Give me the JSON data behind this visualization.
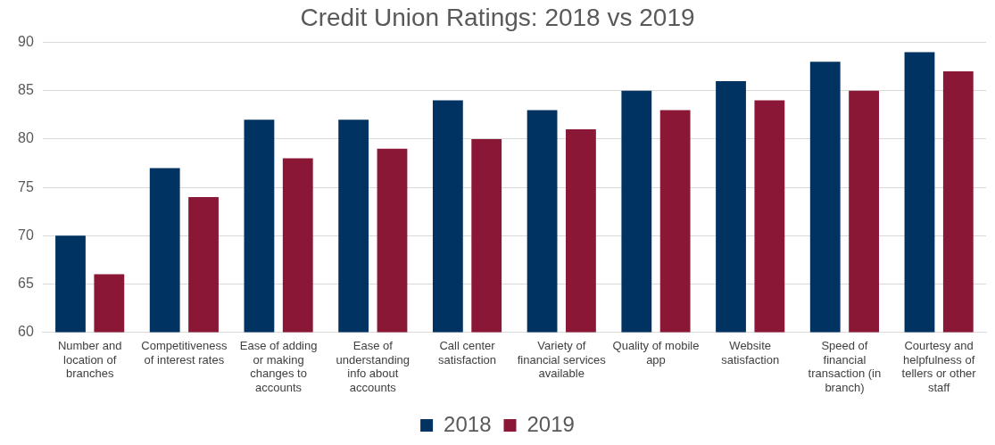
{
  "chart_data": {
    "type": "bar",
    "title": "Credit Union Ratings: 2018 vs 2019",
    "categories": [
      "Number and location of branches",
      "Competitiveness of interest rates",
      "Ease of adding or making changes to accounts",
      "Ease of understanding info about accounts",
      "Call center satisfaction",
      "Variety of financial services available",
      "Quality of mobile app",
      "Website satisfaction",
      "Speed of financial transaction (in branch)",
      "Courtesy and helpfulness of tellers or other staff"
    ],
    "series": [
      {
        "name": "2018",
        "color": "#003361",
        "values": [
          70,
          77,
          82,
          82,
          84,
          83,
          85,
          86,
          88,
          89
        ]
      },
      {
        "name": "2019",
        "color": "#8b1737",
        "values": [
          66,
          74,
          78,
          79,
          80,
          81,
          83,
          84,
          85,
          87
        ]
      }
    ],
    "ylim": [
      60,
      90
    ],
    "yticks": [
      60,
      65,
      70,
      75,
      80,
      85,
      90
    ],
    "grid": "y",
    "legend": "bottom"
  }
}
